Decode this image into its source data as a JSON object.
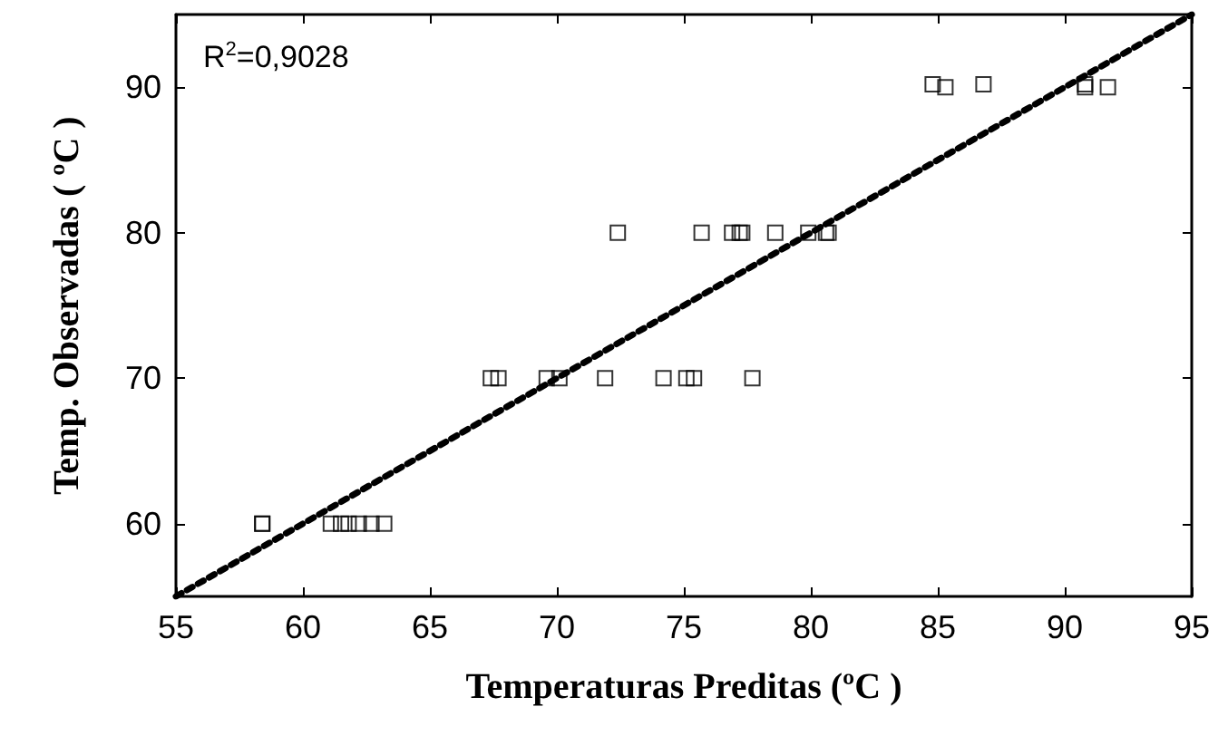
{
  "chart_data": {
    "type": "scatter",
    "xlabel": "Temperaturas Preditas (ºC )",
    "ylabel": "Temp. Observadas ( ºC )",
    "annotations": [
      "R$^{2}$=0,9028"
    ],
    "xlim": [
      55,
      95
    ],
    "xticks": [
      55,
      60,
      65,
      70,
      75,
      80,
      85,
      90,
      95
    ],
    "ylim": [
      55,
      95
    ],
    "yticks": [
      60,
      70,
      80,
      90
    ],
    "grid": false,
    "series": [
      {
        "marker": "square",
        "color": "#000000",
        "x": [
          58.4,
          58.4,
          61.1,
          61.5,
          61.8,
          62.2,
          62.7,
          63.2,
          67.4,
          67.7,
          69.6,
          70.1,
          71.9,
          74.2,
          75.1,
          75.4,
          77.7,
          72.4,
          75.7,
          76.9,
          77.2,
          77.3,
          78.6,
          79.9,
          80.6,
          80.7,
          84.8,
          85.3,
          86.8,
          90.8,
          90.8,
          91.7
        ],
        "values": [
          60,
          60,
          60,
          60,
          60,
          60,
          60,
          60,
          70,
          70,
          70,
          70,
          70,
          70,
          70,
          70,
          70,
          80,
          80,
          80,
          80,
          80,
          80,
          80,
          80,
          80,
          90.2,
          90,
          90.2,
          90,
          90.2,
          90
        ]
      },
      {
        "type": "line",
        "line_style": "dotted",
        "marker": "none",
        "color": "#000000",
        "x": [
          55,
          95
        ],
        "values": [
          55,
          95
        ]
      }
    ]
  }
}
